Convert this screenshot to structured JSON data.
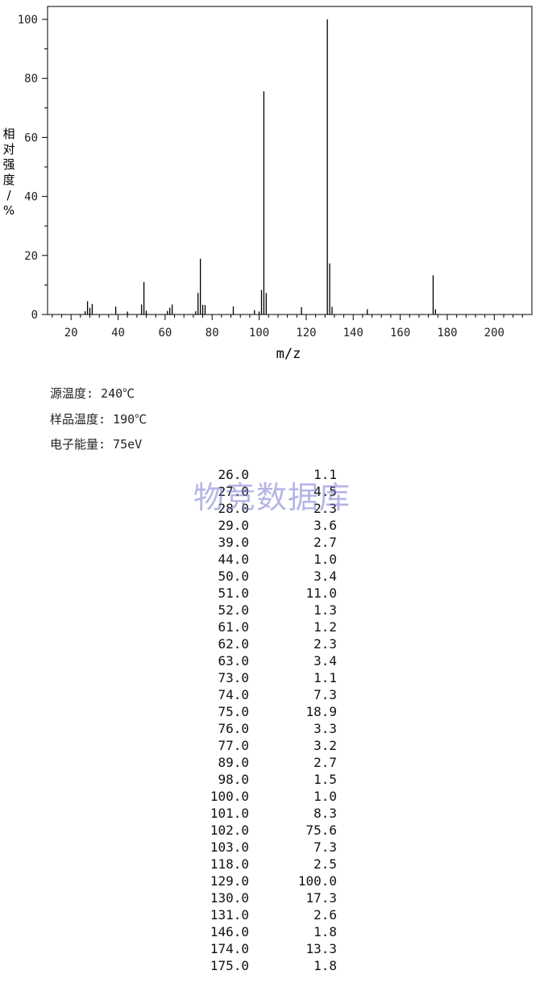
{
  "chart_data": {
    "type": "bar",
    "xlabel": "m/z",
    "ylabel": "相对强度/%",
    "xlim": [
      10,
      215
    ],
    "ylim": [
      0,
      100
    ],
    "xticks": [
      20,
      40,
      60,
      80,
      100,
      120,
      140,
      160,
      180,
      200
    ],
    "yticks": [
      0,
      20,
      40,
      60,
      80,
      100
    ],
    "grid": false,
    "x": [
      26,
      27,
      28,
      29,
      39,
      44,
      50,
      51,
      52,
      61,
      62,
      63,
      73,
      74,
      75,
      76,
      77,
      89,
      98,
      100,
      101,
      102,
      103,
      118,
      129,
      130,
      131,
      146,
      174,
      175
    ],
    "values": [
      1.1,
      4.5,
      2.3,
      3.6,
      2.7,
      1.0,
      3.4,
      11.0,
      1.3,
      1.2,
      2.3,
      3.4,
      1.1,
      7.3,
      18.9,
      3.3,
      3.2,
      2.7,
      1.5,
      1.0,
      8.3,
      75.6,
      7.3,
      2.5,
      100.0,
      17.3,
      2.6,
      1.8,
      13.3,
      1.8
    ]
  },
  "conditions": {
    "source_temp": "源温度: 240℃",
    "sample_temp": "样品温度: 190℃",
    "electron_energy": "电子能量: 75eV"
  },
  "peak_table": [
    {
      "mz": "26.0",
      "abundance": "1.1"
    },
    {
      "mz": "27.0",
      "abundance": "4.5"
    },
    {
      "mz": "28.0",
      "abundance": "2.3"
    },
    {
      "mz": "29.0",
      "abundance": "3.6"
    },
    {
      "mz": "39.0",
      "abundance": "2.7"
    },
    {
      "mz": "44.0",
      "abundance": "1.0"
    },
    {
      "mz": "50.0",
      "abundance": "3.4"
    },
    {
      "mz": "51.0",
      "abundance": "11.0"
    },
    {
      "mz": "52.0",
      "abundance": "1.3"
    },
    {
      "mz": "61.0",
      "abundance": "1.2"
    },
    {
      "mz": "62.0",
      "abundance": "2.3"
    },
    {
      "mz": "63.0",
      "abundance": "3.4"
    },
    {
      "mz": "73.0",
      "abundance": "1.1"
    },
    {
      "mz": "74.0",
      "abundance": "7.3"
    },
    {
      "mz": "75.0",
      "abundance": "18.9"
    },
    {
      "mz": "76.0",
      "abundance": "3.3"
    },
    {
      "mz": "77.0",
      "abundance": "3.2"
    },
    {
      "mz": "89.0",
      "abundance": "2.7"
    },
    {
      "mz": "98.0",
      "abundance": "1.5"
    },
    {
      "mz": "100.0",
      "abundance": "1.0"
    },
    {
      "mz": "101.0",
      "abundance": "8.3"
    },
    {
      "mz": "102.0",
      "abundance": "75.6"
    },
    {
      "mz": "103.0",
      "abundance": "7.3"
    },
    {
      "mz": "118.0",
      "abundance": "2.5"
    },
    {
      "mz": "129.0",
      "abundance": "100.0"
    },
    {
      "mz": "130.0",
      "abundance": "17.3"
    },
    {
      "mz": "131.0",
      "abundance": "2.6"
    },
    {
      "mz": "146.0",
      "abundance": "1.8"
    },
    {
      "mz": "174.0",
      "abundance": "13.3"
    },
    {
      "mz": "175.0",
      "abundance": "1.8"
    }
  ],
  "watermark": "物竞数据库"
}
